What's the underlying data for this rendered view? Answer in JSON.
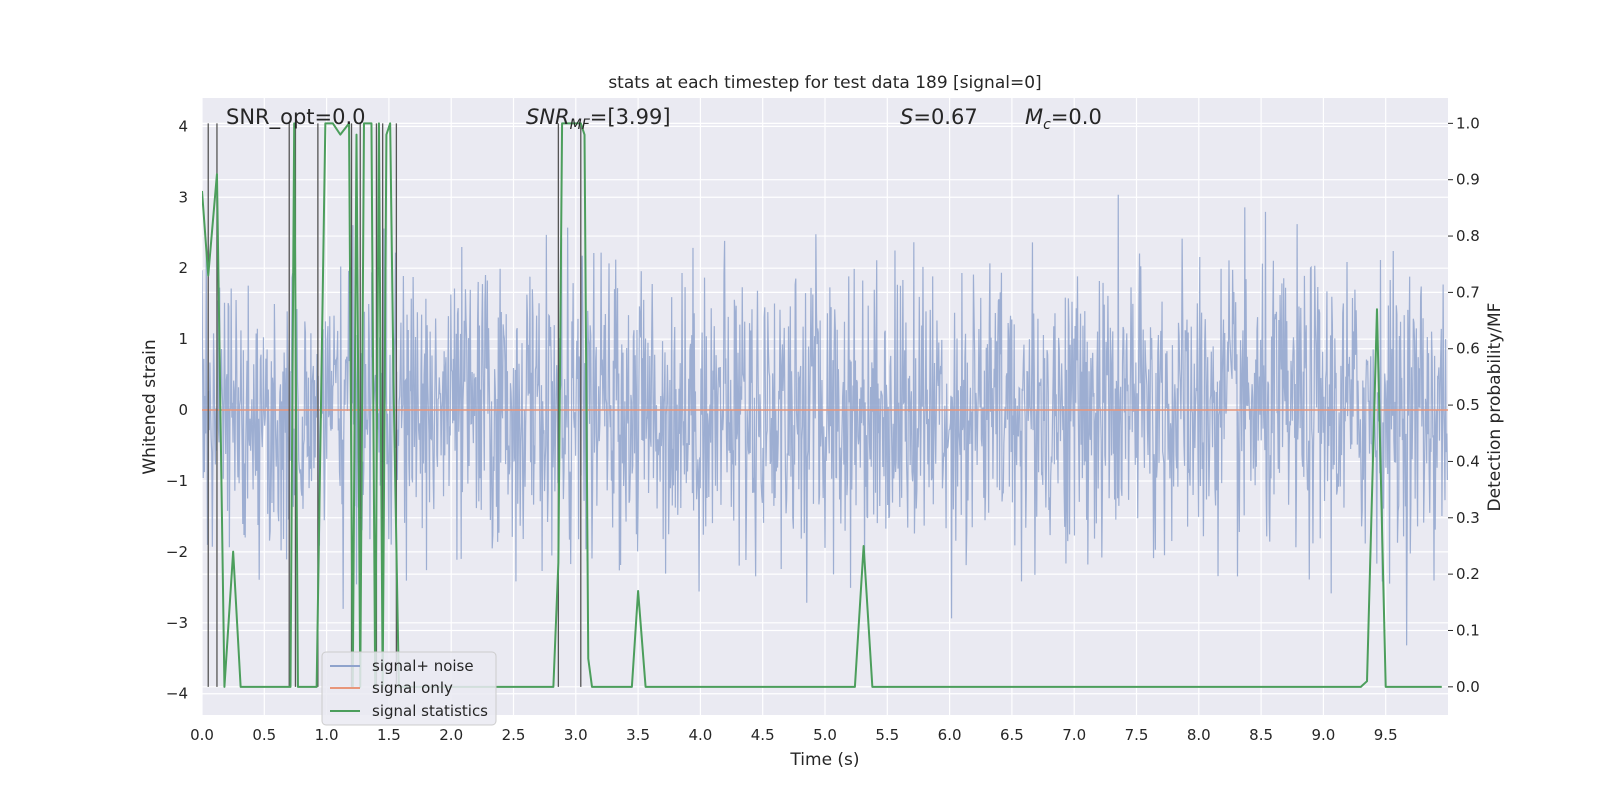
{
  "chart_data": {
    "type": "line",
    "title": "stats at each timestep for test data 189 [signal=0]",
    "xlabel": "Time (s)",
    "ylabel": "Whitened strain",
    "ylabel_right": "Detection probability/MF",
    "xlim": [
      0.0,
      10.0
    ],
    "ylim": [
      -4.3,
      4.4
    ],
    "ylim_right": [
      -0.05,
      1.045
    ],
    "x_ticks": [
      "0.0",
      "0.5",
      "1.0",
      "1.5",
      "2.0",
      "2.5",
      "3.0",
      "3.5",
      "4.0",
      "4.5",
      "5.0",
      "5.5",
      "6.0",
      "6.5",
      "7.0",
      "7.5",
      "8.0",
      "8.5",
      "9.0",
      "9.5"
    ],
    "y_ticks": [
      "4",
      "3",
      "2",
      "1",
      "0",
      "−1",
      "−2",
      "−3",
      "−4"
    ],
    "y_ticks_right": [
      "1.0",
      "0.9",
      "0.8",
      "0.7",
      "0.6",
      "0.5",
      "0.4",
      "0.3",
      "0.2",
      "0.1",
      "0.0"
    ],
    "grid": true,
    "legend_position": "lower-left",
    "annotations": {
      "snr_opt": "SNR_opt=0.0",
      "snr_mf_symbol": "SNR",
      "snr_mf_sub": "MF",
      "snr_mf_value": "=[3.99]",
      "s_symbol": "S",
      "s_value": "=0.67",
      "mc_symbol": "M",
      "mc_sub": "c",
      "mc_value": "=0.0"
    },
    "series": [
      {
        "name": "signal+ noise",
        "color": "#8fa3cc",
        "kind": "noise",
        "n_samples": 2048,
        "sigma": 1.0
      },
      {
        "name": "signal only",
        "color": "#e8967a",
        "kind": "constant",
        "value": 0.0
      },
      {
        "name": "signal statistics",
        "color": "#4c9e5c",
        "kind": "line",
        "x": [
          0.0,
          0.05,
          0.12,
          0.18,
          0.25,
          0.31,
          0.68,
          0.71,
          0.74,
          0.77,
          0.8,
          0.83,
          0.92,
          0.99,
          1.05,
          1.11,
          1.18,
          1.21,
          1.24,
          1.27,
          1.3,
          1.36,
          1.39,
          1.42,
          1.45,
          1.48,
          1.51,
          1.54,
          1.58,
          1.61,
          2.82,
          2.86,
          2.89,
          3.04,
          3.07,
          3.1,
          3.13,
          3.19,
          3.45,
          3.5,
          3.56,
          5.24,
          5.31,
          5.38,
          9.3,
          9.35,
          9.43,
          9.5,
          9.95
        ],
        "y": [
          0.88,
          0.73,
          0.91,
          0.0,
          0.24,
          0.0,
          0.0,
          0.0,
          1.0,
          0.0,
          0.0,
          0.0,
          0.0,
          1.0,
          1.0,
          0.98,
          1.0,
          0.0,
          0.98,
          0.0,
          1.0,
          1.0,
          0.0,
          1.0,
          0.0,
          0.98,
          1.0,
          0.5,
          0.0,
          0.0,
          0.0,
          0.22,
          1.0,
          1.0,
          0.98,
          0.05,
          0.0,
          0.0,
          0.0,
          0.17,
          0.0,
          0.0,
          0.25,
          0.0,
          0.0,
          0.01,
          0.67,
          0.0,
          0.0
        ]
      },
      {
        "name": "",
        "color": "#555555",
        "kind": "vlines",
        "x": [
          0.05,
          0.12,
          0.7,
          0.75,
          0.93,
          1.2,
          1.27,
          1.4,
          1.45,
          1.56,
          2.86,
          3.04
        ]
      }
    ]
  }
}
